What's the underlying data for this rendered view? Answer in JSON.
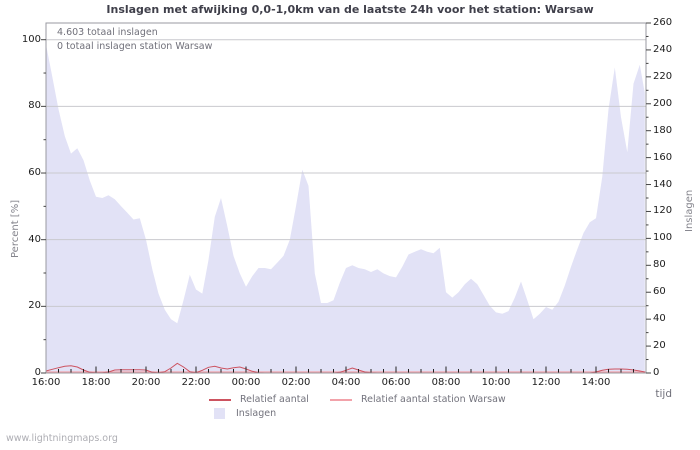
{
  "page": {
    "title": "Inslagen met afwijking 0,0-1,0km van de laatste 24h voor het station: Warsaw",
    "watermark": "www.lightningmaps.org"
  },
  "annotations": {
    "total": "4.603 totaal inslagen",
    "station_total": "0 totaal inslagen station Warsaw"
  },
  "axes": {
    "x": {
      "label": "tijd",
      "tick_labels": [
        "16:00",
        "18:00",
        "20:00",
        "22:00",
        "00:00",
        "02:00",
        "04:00",
        "06:00",
        "08:00",
        "10:00",
        "12:00",
        "14:00"
      ],
      "major_step_min": 120,
      "minor_step_min": 30
    },
    "y_left": {
      "label": "Percent  [%]",
      "ticks": [
        0,
        20,
        40,
        60,
        80,
        100
      ],
      "minor_step": 10,
      "max": 105
    },
    "y_right": {
      "label": "Inslagen",
      "ticks": [
        0,
        20,
        40,
        60,
        80,
        100,
        120,
        140,
        160,
        180,
        200,
        220,
        240,
        260
      ],
      "minor_step": 10,
      "max": 260
    }
  },
  "legend": {
    "items": [
      {
        "label": "Relatief aantal",
        "swatch": "line",
        "color": "#cd5360"
      },
      {
        "label": "Relatief aantal station Warsaw",
        "swatch": "line",
        "color": "#f2a2aa"
      },
      {
        "label": "Inslagen",
        "swatch": "box",
        "color": "#e2e2f6"
      }
    ]
  },
  "chart_data": {
    "type": "area",
    "title": "Inslagen met afwijking 0,0-1,0km van de laatste 24h voor het station: Warsaw",
    "xlabel": "tijd",
    "ylabel_left": "Percent  [%]",
    "ylabel_right": "Inslagen",
    "x_start_label": "16:00",
    "x_step_min": 15,
    "x_end_min": 1437,
    "ylim_left": [
      0,
      105
    ],
    "ylim_right": [
      0,
      260
    ],
    "grid": "horizontal",
    "legend_position": "bottom",
    "totals": {
      "all_strikes": 4603,
      "station_warsaw_strikes": 0
    },
    "series": [
      {
        "name": "Inslagen",
        "type": "area",
        "axis": "right",
        "color": "#e2e2f6",
        "values": [
          244,
          220,
          196,
          176,
          163,
          167,
          158,
          143,
          131,
          130,
          132,
          129,
          124,
          119,
          114,
          115,
          99,
          77,
          59,
          47,
          40,
          37,
          54,
          73,
          62,
          59,
          84,
          116,
          130,
          109,
          87,
          74,
          64,
          72,
          78,
          78,
          77,
          82,
          87,
          99,
          124,
          151,
          139,
          74,
          52,
          52,
          54,
          67,
          78,
          80,
          78,
          77,
          75,
          77,
          74,
          72,
          71,
          79,
          88,
          90,
          92,
          90,
          89,
          93,
          60,
          56,
          60,
          66,
          70,
          66,
          58,
          50,
          45,
          44,
          46,
          56,
          68,
          54,
          40,
          44,
          49,
          47,
          53,
          65,
          79,
          92,
          104,
          112,
          115,
          146,
          196,
          227,
          190,
          164,
          215,
          229,
          208
        ]
      },
      {
        "name": "Relatief aantal",
        "type": "line",
        "axis": "left",
        "color": "#cd5360",
        "values": [
          0.6,
          1.1,
          1.6,
          2.0,
          2.2,
          1.8,
          0.9,
          0.2,
          0.1,
          0.1,
          0.3,
          0.9,
          1.0,
          1.0,
          1.0,
          1.0,
          0.9,
          0.2,
          0.1,
          0.4,
          1.5,
          2.9,
          1.8,
          0.4,
          0.1,
          0.8,
          1.7,
          2.0,
          1.5,
          1.2,
          1.6,
          1.8,
          1.2,
          0.5,
          0.1,
          0,
          0,
          0,
          0,
          0,
          0,
          0,
          0,
          0,
          0,
          0,
          0,
          0.2,
          0.8,
          1.5,
          0.9,
          0.3,
          0.1,
          0,
          0,
          0,
          0,
          0,
          0,
          0,
          0,
          0,
          0,
          0,
          0,
          0,
          0,
          0,
          0,
          0,
          0,
          0,
          0,
          0,
          0,
          0,
          0,
          0,
          0,
          0,
          0,
          0,
          0,
          0,
          0,
          0,
          0,
          0,
          0.3,
          0.8,
          1.1,
          1.2,
          1.2,
          1.1,
          0.9,
          0.6,
          0.3
        ]
      },
      {
        "name": "Relatief aantal station Warsaw",
        "type": "line",
        "axis": "left",
        "color": "#f2a2aa",
        "constant": 0
      }
    ]
  }
}
